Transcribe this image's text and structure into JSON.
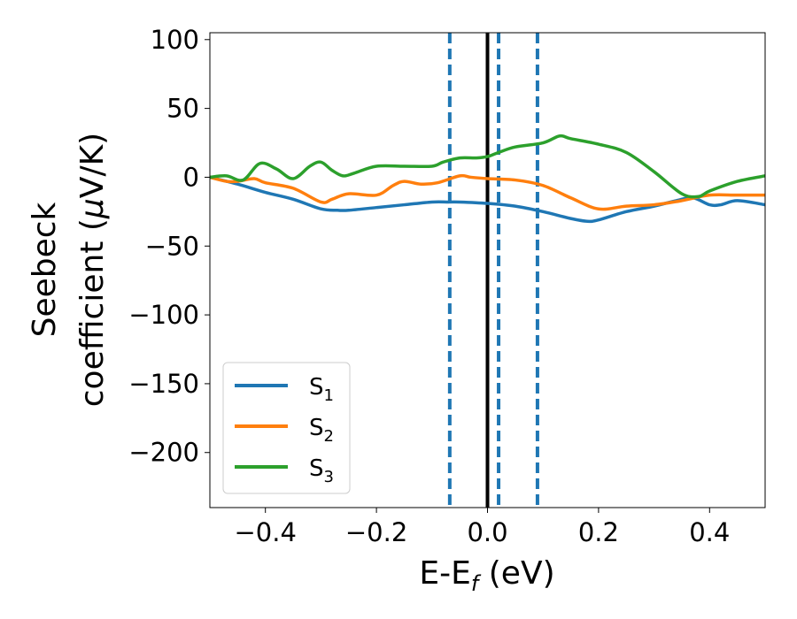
{
  "chart_data": {
    "type": "line",
    "xlabel": "E-E",
    "xlabel_sub": "f",
    "xlabel_unit": " (eV)",
    "ylabel_line1": "Seebeck",
    "ylabel_line2": "coefficient  (",
    "ylabel_mu": "μ",
    "ylabel_unit": "V/K)",
    "xlim": [
      -0.5,
      0.5
    ],
    "ylim": [
      -240,
      105
    ],
    "xticks": [
      -0.4,
      -0.2,
      0.0,
      0.2,
      0.4
    ],
    "xtick_labels": [
      "−0.4",
      "−0.2",
      "0.0",
      "0.2",
      "0.4"
    ],
    "yticks": [
      100,
      50,
      0,
      -50,
      -100,
      -150,
      -200
    ],
    "ytick_labels": [
      "100",
      "50",
      "0",
      "−50",
      "−100",
      "−150",
      "−200"
    ],
    "grid": false,
    "legend_position": "lower-left",
    "legend": [
      {
        "label": "S",
        "sub": "1",
        "color": "#1f77b4"
      },
      {
        "label": "S",
        "sub": "2",
        "color": "#ff7f0e"
      },
      {
        "label": "S",
        "sub": "3",
        "color": "#2ca02c"
      }
    ],
    "vlines": [
      {
        "x": 0.0,
        "color": "#000000",
        "style": "solid"
      },
      {
        "x": -0.068,
        "color": "#1f77b4",
        "style": "dashed"
      },
      {
        "x": 0.02,
        "color": "#1f77b4",
        "style": "dashed"
      },
      {
        "x": 0.09,
        "color": "#1f77b4",
        "style": "dashed"
      }
    ],
    "series": [
      {
        "color": "#1f77b4",
        "x": [
          -0.5,
          -0.45,
          -0.4,
          -0.35,
          -0.3,
          -0.27,
          -0.25,
          -0.2,
          -0.15,
          -0.1,
          -0.07,
          -0.05,
          0.0,
          0.05,
          0.1,
          0.15,
          0.18,
          0.2,
          0.25,
          0.3,
          0.34,
          0.37,
          0.4,
          0.42,
          0.45,
          0.5
        ],
        "y": [
          0,
          -5,
          -11,
          -16,
          -23,
          -24,
          -24,
          -22,
          -20,
          -18,
          -18,
          -18,
          -19,
          -21,
          -25,
          -30,
          -32,
          -31,
          -25,
          -21,
          -17,
          -15,
          -20,
          -20,
          -17,
          -20
        ]
      },
      {
        "color": "#ff7f0e",
        "x": [
          -0.5,
          -0.47,
          -0.45,
          -0.42,
          -0.4,
          -0.35,
          -0.3,
          -0.28,
          -0.25,
          -0.2,
          -0.17,
          -0.15,
          -0.12,
          -0.09,
          -0.05,
          -0.03,
          0.0,
          0.05,
          0.1,
          0.15,
          0.2,
          0.25,
          0.3,
          0.35,
          0.4,
          0.45,
          0.5
        ],
        "y": [
          0,
          -3,
          -3,
          -1,
          -4,
          -8,
          -18,
          -16,
          -12,
          -13,
          -6,
          -3,
          -5,
          -4,
          1,
          0,
          -1,
          -2,
          -6,
          -15,
          -23,
          -21,
          -20,
          -17,
          -13,
          -13,
          -13
        ]
      },
      {
        "color": "#2ca02c",
        "x": [
          -0.5,
          -0.47,
          -0.44,
          -0.41,
          -0.38,
          -0.35,
          -0.32,
          -0.3,
          -0.28,
          -0.26,
          -0.24,
          -0.2,
          -0.15,
          -0.1,
          -0.08,
          -0.05,
          -0.02,
          0.0,
          0.02,
          0.05,
          0.1,
          0.13,
          0.15,
          0.2,
          0.25,
          0.3,
          0.35,
          0.38,
          0.4,
          0.45,
          0.5
        ],
        "y": [
          0,
          1,
          -2,
          10,
          6,
          -1,
          8,
          11,
          5,
          1,
          3,
          8,
          8,
          8,
          11,
          14,
          14,
          15,
          18,
          22,
          25,
          30,
          28,
          24,
          18,
          4,
          -12,
          -14,
          -10,
          -3,
          1
        ]
      }
    ]
  }
}
